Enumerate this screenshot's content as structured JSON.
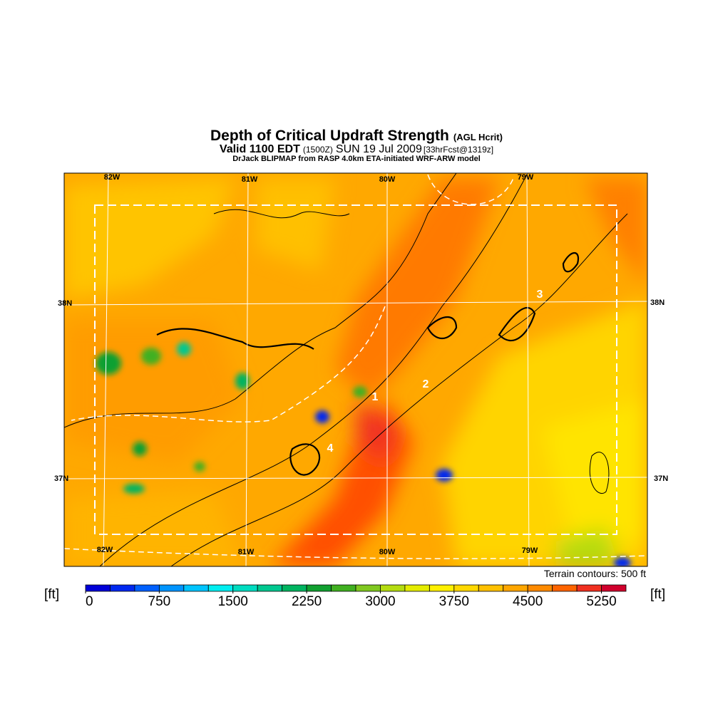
{
  "header": {
    "title": "Depth of Critical Updraft Strength",
    "title_note": "(AGL Hcrit)",
    "valid": "Valid 1100 EDT",
    "utc": "(1500Z)",
    "date": "SUN 19 Jul 2009",
    "forecast": "[33hrFcst@1319z]",
    "source": "DrJack BLIPMAP from RASP 4.0km ETA-initiated WRF-ARW model"
  },
  "map": {
    "lon_labels_top": [
      "82W",
      "81W",
      "80W",
      "79W"
    ],
    "lon_labels_bottom": [
      "82W",
      "81W",
      "80W",
      "79W"
    ],
    "lat_labels_left": [
      "38N",
      "37N"
    ],
    "lat_labels_right": [
      "38N",
      "37N"
    ],
    "sites": [
      "1",
      "2",
      "3",
      "4"
    ],
    "terrain_note": "Terrain contours: 500 ft"
  },
  "colorbar": {
    "unit_left": "[ft]",
    "unit_right": "[ft]",
    "range": [
      0,
      5500
    ],
    "ticks": [
      0,
      750,
      1500,
      2250,
      3000,
      3750,
      4500,
      5250
    ],
    "colors": [
      "#0000d8",
      "#0028f0",
      "#0060ff",
      "#0094ff",
      "#00c4ff",
      "#00eef0",
      "#00dcc0",
      "#00c890",
      "#00b460",
      "#10a030",
      "#40b020",
      "#80c820",
      "#b4dc10",
      "#e4ec00",
      "#fff000",
      "#ffd800",
      "#ffc000",
      "#ffa600",
      "#ff8a00",
      "#ff6400",
      "#f03020",
      "#d0002c"
    ]
  }
}
